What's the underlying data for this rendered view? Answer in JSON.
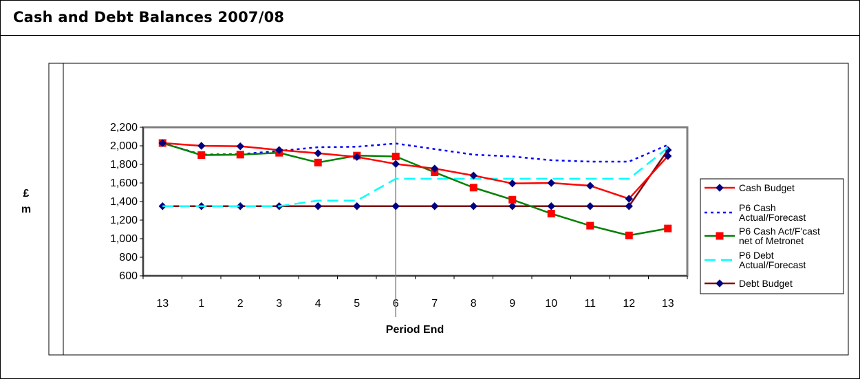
{
  "page": {
    "title": "Cash and Debt Balances 2007/08"
  },
  "chart_data": {
    "type": "line",
    "title": "",
    "xlabel": "Period End",
    "ylabel_lines": [
      "£",
      "m"
    ],
    "categories": [
      "13",
      "1",
      "2",
      "3",
      "4",
      "5",
      "6",
      "7",
      "8",
      "9",
      "10",
      "11",
      "12",
      "13"
    ],
    "ylim": [
      600,
      2200
    ],
    "yticks": [
      600,
      800,
      1000,
      1200,
      1400,
      1600,
      1800,
      2000,
      2200
    ],
    "ytick_labels": [
      "600",
      "800",
      "1,000",
      "1,200",
      "1,400",
      "1,600",
      "1,800",
      "2,000",
      "2,200"
    ],
    "grid": false,
    "legend_position": "right",
    "vertical_marker_after_category_index": 6,
    "series": [
      {
        "name": "Cash Budget",
        "legend_lines": [
          "Cash Budget"
        ],
        "color": "#ff0000",
        "dash": "solid",
        "marker": "diamond",
        "marker_color": "#000080",
        "values": [
          2030,
          2000,
          1995,
          1955,
          1920,
          1880,
          1805,
          1755,
          1680,
          1595,
          1600,
          1570,
          1430,
          1890
        ]
      },
      {
        "name": "P6 Cash Actual/Forecast",
        "legend_lines": [
          "P6 Cash",
          "Actual/Forecast"
        ],
        "color": "#0000ff",
        "dash": "dotted",
        "marker": "none",
        "values": [
          2030,
          1905,
          1910,
          1945,
          1985,
          1990,
          2025,
          1965,
          1905,
          1885,
          1845,
          1830,
          1830,
          2010
        ]
      },
      {
        "name": "P6 Cash Act/F'cast net of Metronet",
        "legend_lines": [
          "P6 Cash Act/F'cast",
          "net of Metronet"
        ],
        "color": "#008000",
        "dash": "solid",
        "marker": "square",
        "marker_color": "#ff0000",
        "values": [
          2030,
          1900,
          1905,
          1925,
          1820,
          1895,
          1885,
          1715,
          1550,
          1420,
          1270,
          1140,
          1035,
          1110
        ]
      },
      {
        "name": "P6 Debt Actual/Forecast",
        "legend_lines": [
          "P6 Debt",
          "Actual/Forecast"
        ],
        "color": "#00ffff",
        "dash": "dashed",
        "marker": "none",
        "values": [
          1350,
          1350,
          1350,
          1350,
          1410,
          1410,
          1645,
          1645,
          1645,
          1645,
          1645,
          1645,
          1645,
          1980
        ]
      },
      {
        "name": "Debt Budget",
        "legend_lines": [
          "Debt Budget"
        ],
        "color": "#800000",
        "dash": "solid",
        "marker": "diamond",
        "marker_color": "#000080",
        "values": [
          1350,
          1350,
          1350,
          1350,
          1350,
          1350,
          1350,
          1350,
          1350,
          1350,
          1350,
          1350,
          1350,
          1955
        ]
      }
    ]
  }
}
